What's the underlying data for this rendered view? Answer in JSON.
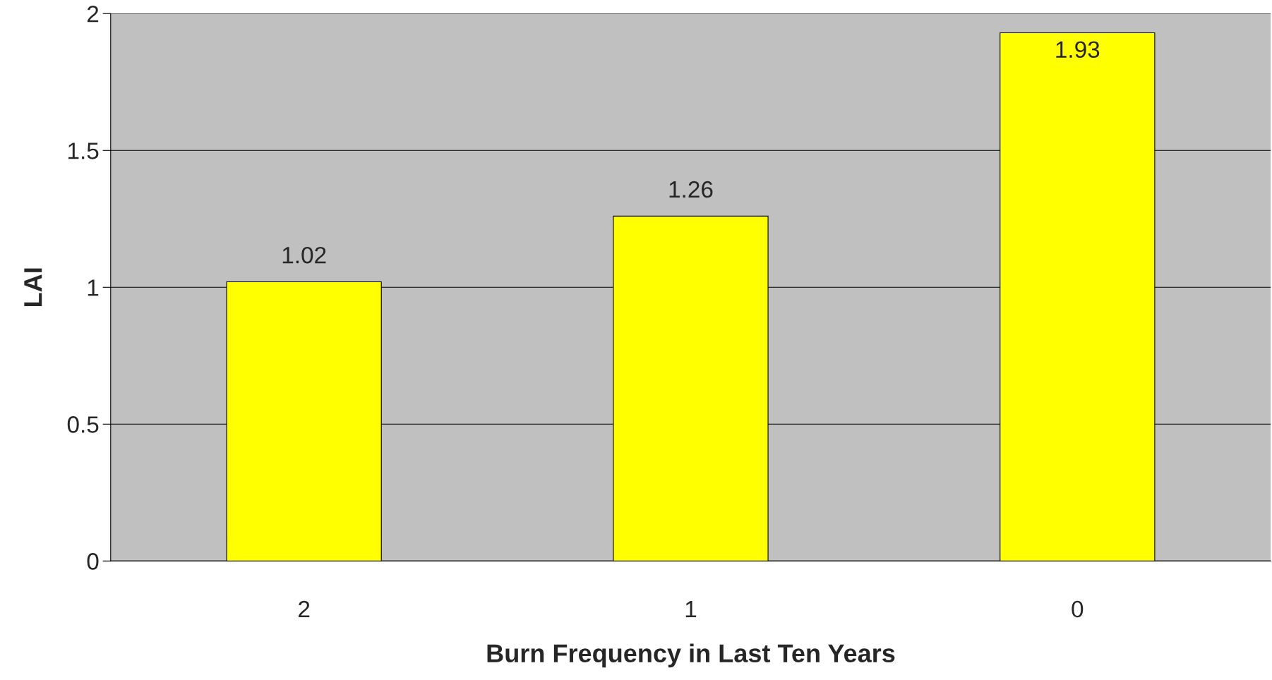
{
  "chart_data": {
    "type": "bar",
    "xlabel": "Burn Frequency in Last Ten Years",
    "ylabel": "LAI",
    "categories": [
      "2",
      "1",
      "0"
    ],
    "values": [
      1.02,
      1.26,
      1.93
    ],
    "color": "#ffff00",
    "ylim": [
      0,
      2
    ],
    "yticks": [
      0,
      0.5,
      1,
      1.5,
      2
    ],
    "grid": "y",
    "data_labels": true
  }
}
